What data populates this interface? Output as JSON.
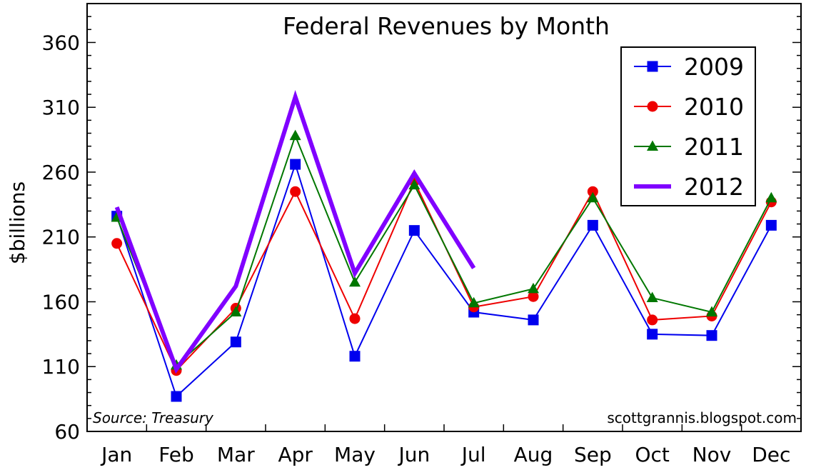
{
  "chart_data": {
    "type": "line",
    "title": "Federal Revenues by Month",
    "ylabel": "$billions",
    "xlabel": "",
    "ylim": [
      60,
      390
    ],
    "yticks": [
      60,
      110,
      160,
      210,
      260,
      310,
      360
    ],
    "categories": [
      "Jan",
      "Feb",
      "Mar",
      "Apr",
      "May",
      "Jun",
      "Jul",
      "Aug",
      "Sep",
      "Oct",
      "Nov",
      "Dec"
    ],
    "legend_position": "top-right",
    "series": [
      {
        "name": "2009",
        "color": "#0000ee",
        "marker": "square",
        "values": [
          226,
          87,
          129,
          266,
          118,
          215,
          152,
          146,
          219,
          135,
          134,
          219
        ]
      },
      {
        "name": "2010",
        "color": "#ee0000",
        "marker": "circle",
        "values": [
          205,
          107,
          155,
          245,
          147,
          253,
          156,
          164,
          245,
          146,
          149,
          237
        ]
      },
      {
        "name": "2011",
        "color": "#007700",
        "marker": "triangle",
        "values": [
          225,
          111,
          152,
          288,
          175,
          250,
          159,
          170,
          240,
          163,
          152,
          240
        ]
      },
      {
        "name": "2012",
        "color": "#8000ff",
        "marker": "none",
        "values": [
          233,
          108,
          172,
          318,
          182,
          259,
          186,
          null,
          null,
          null,
          null,
          null
        ]
      }
    ],
    "annotations": {
      "source": "Source: Treasury",
      "credit": "scottgrannis.blogspot.com"
    }
  }
}
